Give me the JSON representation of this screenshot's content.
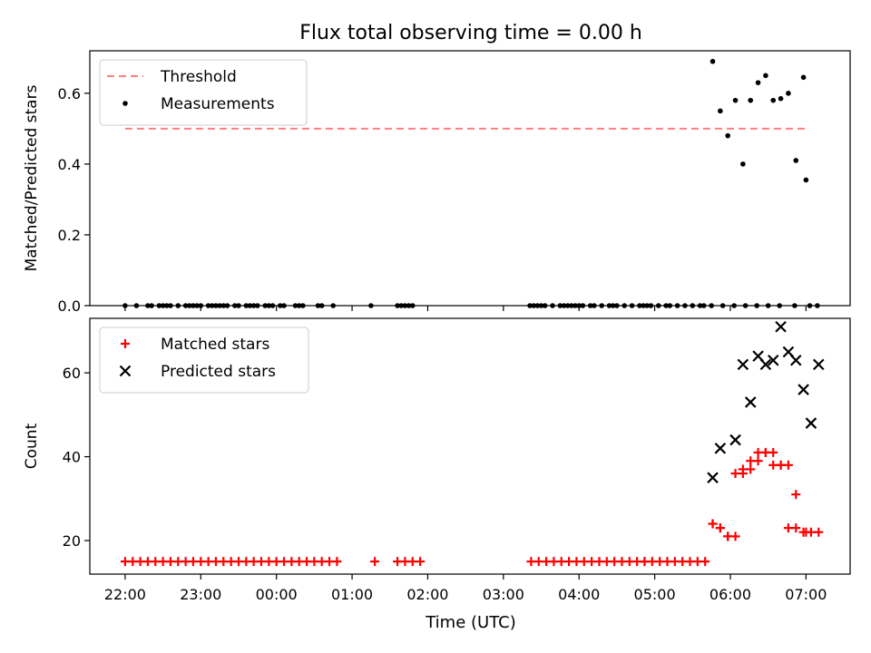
{
  "title": "Flux total observing time = 0.00 h",
  "xlabel": "Time (UTC)",
  "colors": {
    "threshold": "#ff7f7f",
    "measurement": "#000000",
    "matched": "#ff0000",
    "predicted": "#000000"
  },
  "chart_data": [
    {
      "type": "scatter",
      "panel": "top",
      "ylabel": "Matched/Predicted stars",
      "xlim": [
        "21:32",
        "07:35"
      ],
      "ylim": [
        0,
        0.72
      ],
      "yticks": [
        0.0,
        0.2,
        0.4,
        0.6
      ],
      "ytick_labels": [
        "0.0",
        "0.2",
        "0.4",
        "0.6"
      ],
      "legend_position": "top-left",
      "series": [
        {
          "name": "Threshold",
          "style": "dashed-line",
          "x": [
            "22:00",
            "07:00"
          ],
          "y": [
            0.5,
            0.5
          ]
        },
        {
          "name": "Measurements",
          "style": "dot",
          "x": [
            "22:00",
            "22:09",
            "22:18",
            "22:21",
            "22:27",
            "22:30",
            "22:33",
            "22:36",
            "22:42",
            "22:48",
            "22:51",
            "22:54",
            "22:57",
            "23:00",
            "23:06",
            "23:09",
            "23:12",
            "23:15",
            "23:18",
            "23:21",
            "23:27",
            "23:30",
            "23:36",
            "23:39",
            "23:42",
            "23:45",
            "23:51",
            "23:54",
            "23:57",
            "00:03",
            "00:06",
            "00:15",
            "00:18",
            "00:21",
            "00:33",
            "00:36",
            "00:45",
            "01:15",
            "01:36",
            "01:39",
            "01:42",
            "01:45",
            "01:48",
            "03:21",
            "03:24",
            "03:27",
            "03:30",
            "03:33",
            "03:39",
            "03:45",
            "03:48",
            "03:51",
            "03:54",
            "03:57",
            "04:00",
            "04:03",
            "04:09",
            "04:12",
            "04:18",
            "04:24",
            "04:27",
            "04:30",
            "04:36",
            "04:42",
            "04:48",
            "04:51",
            "04:54",
            "04:57",
            "05:03",
            "05:09",
            "05:12",
            "05:18",
            "05:24",
            "05:30",
            "05:36",
            "05:39",
            "05:45",
            "05:54",
            "06:03",
            "06:12",
            "06:21",
            "06:30",
            "06:39",
            "06:51",
            "07:03",
            "07:09"
          ],
          "y": [
            0,
            0,
            0,
            0,
            0,
            0,
            0,
            0,
            0,
            0,
            0,
            0,
            0,
            0,
            0,
            0,
            0,
            0,
            0,
            0,
            0,
            0,
            0,
            0,
            0,
            0,
            0,
            0,
            0,
            0,
            0,
            0,
            0,
            0,
            0,
            0,
            0,
            0,
            0,
            0,
            0,
            0,
            0,
            0,
            0,
            0,
            0,
            0,
            0,
            0,
            0,
            0,
            0,
            0,
            0,
            0,
            0,
            0,
            0,
            0,
            0,
            0,
            0,
            0,
            0,
            0,
            0,
            0,
            0,
            0,
            0,
            0,
            0,
            0,
            0,
            0,
            0,
            0,
            0,
            0,
            0,
            0,
            0,
            0,
            0,
            0
          ]
        },
        {
          "name": "",
          "style": "dot",
          "x": [
            "05:46",
            "05:52",
            "05:58",
            "06:04",
            "06:10",
            "06:16",
            "06:22",
            "06:28",
            "06:34",
            "06:40",
            "06:46",
            "06:52",
            "06:58",
            "07:00"
          ],
          "y": [
            0.69,
            0.55,
            0.48,
            0.58,
            0.4,
            0.58,
            0.63,
            0.65,
            0.58,
            0.585,
            0.6,
            0.41,
            0.645,
            0.355
          ]
        }
      ]
    },
    {
      "type": "scatter",
      "panel": "bottom",
      "ylabel": "Count",
      "xlim": [
        "21:32",
        "07:35"
      ],
      "ylim": [
        12,
        73
      ],
      "yticks": [
        20,
        40,
        60
      ],
      "ytick_labels": [
        "20",
        "40",
        "60"
      ],
      "xticks": [
        "22:00",
        "23:00",
        "00:00",
        "01:00",
        "02:00",
        "03:00",
        "04:00",
        "05:00",
        "06:00",
        "07:00"
      ],
      "legend_position": "top-left",
      "series": [
        {
          "name": "Matched stars",
          "style": "plus",
          "x": [
            "22:00",
            "22:06",
            "22:12",
            "22:18",
            "22:24",
            "22:30",
            "22:36",
            "22:42",
            "22:48",
            "22:54",
            "23:00",
            "23:06",
            "23:12",
            "23:18",
            "23:24",
            "23:30",
            "23:36",
            "23:42",
            "23:48",
            "23:54",
            "00:00",
            "00:06",
            "00:12",
            "00:18",
            "00:24",
            "00:30",
            "00:36",
            "00:42",
            "00:48",
            "01:18",
            "01:36",
            "01:42",
            "01:48",
            "01:54",
            "03:22",
            "03:28",
            "03:34",
            "03:40",
            "03:46",
            "03:52",
            "03:58",
            "04:04",
            "04:10",
            "04:16",
            "04:22",
            "04:28",
            "04:34",
            "04:40",
            "04:46",
            "04:52",
            "04:52",
            "04:58",
            "05:04",
            "05:10",
            "05:16",
            "05:22",
            "05:28",
            "05:34",
            "05:40",
            "05:46",
            "05:52",
            "05:58",
            "06:04",
            "06:10",
            "06:16",
            "06:22",
            "06:28",
            "06:34",
            "06:40",
            "06:46",
            "06:52",
            "06:58",
            "07:00",
            "07:04",
            "07:10"
          ],
          "y": [
            15,
            15,
            15,
            15,
            15,
            15,
            15,
            15,
            15,
            15,
            15,
            15,
            15,
            15,
            15,
            15,
            15,
            15,
            15,
            15,
            15,
            15,
            15,
            15,
            15,
            15,
            15,
            15,
            15,
            15,
            15,
            15,
            15,
            15,
            15,
            15,
            15,
            15,
            15,
            15,
            15,
            15,
            15,
            15,
            15,
            15,
            15,
            15,
            15,
            15,
            15,
            15,
            15,
            15,
            15,
            15,
            15,
            15,
            15,
            24,
            23,
            21,
            36,
            37,
            39,
            41,
            41,
            38,
            38,
            23,
            31,
            22,
            22,
            22,
            22
          ]
        },
        {
          "name": "",
          "style": "plus",
          "x": [
            "05:46",
            "05:52",
            "05:58",
            "06:04",
            "06:10",
            "06:16",
            "06:22",
            "06:28",
            "06:34",
            "06:40",
            "06:46",
            "06:52"
          ],
          "y": [
            24,
            23,
            21,
            21,
            36,
            37,
            39,
            41,
            41,
            38,
            38,
            23
          ]
        },
        {
          "name": "Predicted stars",
          "style": "x",
          "x": [
            "05:46",
            "05:52",
            "06:04",
            "06:10",
            "06:16",
            "06:22",
            "06:28",
            "06:34",
            "06:40",
            "06:46",
            "06:52",
            "06:58",
            "07:04",
            "07:10"
          ],
          "y": [
            35,
            42,
            44,
            62,
            53,
            64,
            62,
            63,
            71,
            65,
            63,
            56,
            48,
            62
          ]
        }
      ]
    }
  ]
}
